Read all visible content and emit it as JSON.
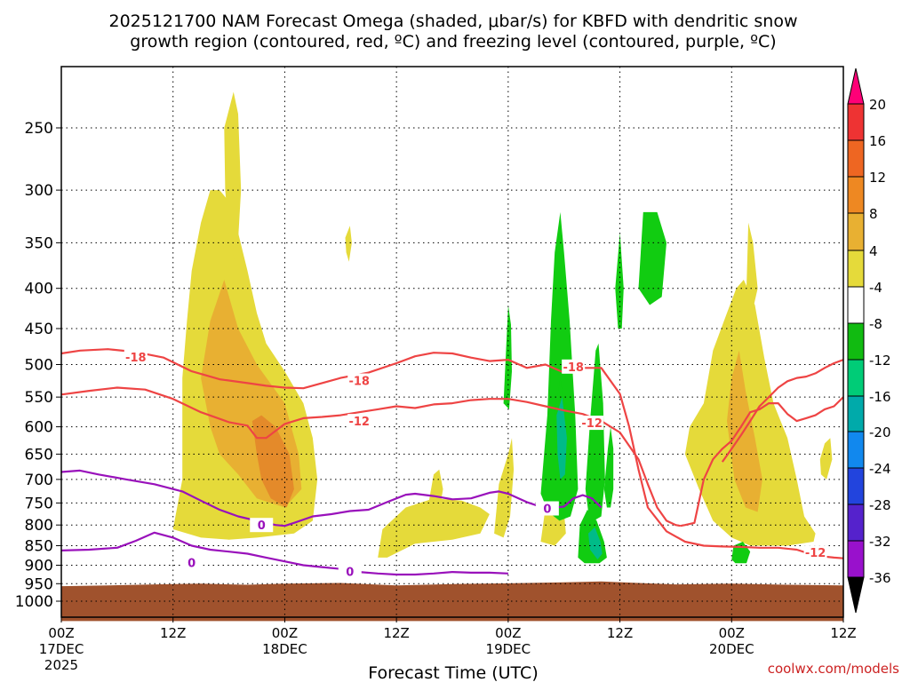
{
  "title_line1": "2025121700 NAM Forecast Omega (shaded, μbar/s) for KBFD with dendritic snow",
  "title_line2": "growth region (contoured, red, ºC) and freezing level (contoured, purple, ºC)",
  "watermark": "coolwx.com/models",
  "chart_data": {
    "type": "area",
    "title": "2025121700 NAM Forecast Omega (shaded, μbar/s) for KBFD with dendritic snow growth region (contoured, red, ºC) and freezing level (contoured, purple, ºC)",
    "xlabel": "Forecast Time (UTC)",
    "ylabel": "",
    "xlim_hours": [
      0,
      84
    ],
    "y_scale": "log-pressure",
    "ylim_hPa": [
      1040,
      200
    ],
    "x_ticks": [
      {
        "hour": 0,
        "label": "00Z",
        "date": "17DEC",
        "year": "2025"
      },
      {
        "hour": 12,
        "label": "12Z",
        "date": "",
        "year": ""
      },
      {
        "hour": 24,
        "label": "00Z",
        "date": "18DEC",
        "year": ""
      },
      {
        "hour": 36,
        "label": "12Z",
        "date": "",
        "year": ""
      },
      {
        "hour": 48,
        "label": "00Z",
        "date": "19DEC",
        "year": ""
      },
      {
        "hour": 60,
        "label": "12Z",
        "date": "",
        "year": ""
      },
      {
        "hour": 72,
        "label": "00Z",
        "date": "20DEC",
        "year": ""
      },
      {
        "hour": 84,
        "label": "12Z",
        "date": "",
        "year": ""
      }
    ],
    "y_ticks": [
      {
        "p": 250,
        "label": "250"
      },
      {
        "p": 300,
        "label": "300"
      },
      {
        "p": 350,
        "label": "350"
      },
      {
        "p": 400,
        "label": "400"
      },
      {
        "p": 450,
        "label": "450"
      },
      {
        "p": 500,
        "label": "500"
      },
      {
        "p": 550,
        "label": "550"
      },
      {
        "p": 600,
        "label": "600"
      },
      {
        "p": 650,
        "label": "650"
      },
      {
        "p": 700,
        "label": "700"
      },
      {
        "p": 750,
        "label": "750"
      },
      {
        "p": 800,
        "label": "800"
      },
      {
        "p": 850,
        "label": "850"
      },
      {
        "p": 900,
        "label": "900"
      },
      {
        "p": 950,
        "label": "950"
      },
      {
        "p": 1000,
        "label": "1000"
      }
    ],
    "colorbar": {
      "labels": [
        "20",
        "16",
        "12",
        "8",
        "4",
        "-4",
        "-8",
        "-12",
        "-16",
        "-20",
        "-24",
        "-28",
        "-32",
        "-36"
      ],
      "colors": [
        "#ff0077",
        "#ee3333",
        "#ee6622",
        "#ee8822",
        "#e8b032",
        "#e5da3a",
        "#ffffff",
        "#11bb11",
        "#00cc77",
        "#00aaaa",
        "#1188ee",
        "#2244dd",
        "#5522cc",
        "#9911cc",
        "#bbbbbb",
        "#000000"
      ]
    },
    "contour_labels": [
      {
        "text": "-18",
        "series": "dgz-18"
      },
      {
        "text": "-18",
        "series": "dgz-18"
      },
      {
        "text": "-18",
        "series": "dgz-18"
      },
      {
        "text": "-12",
        "series": "dgz-12"
      },
      {
        "text": "-12",
        "series": "dgz-12"
      },
      {
        "text": "-12",
        "series": "dgz-12"
      },
      {
        "text": "0",
        "series": "freezing"
      },
      {
        "text": "0",
        "series": "freezing"
      },
      {
        "text": "0",
        "series": "freezing"
      },
      {
        "text": "0",
        "series": "freezing"
      }
    ],
    "series": [
      {
        "name": "-18 °C isotherm",
        "color": "#ee4444",
        "x": [
          0,
          2,
          5,
          8,
          11,
          14,
          17,
          20,
          22,
          24,
          26,
          28,
          30,
          33,
          36,
          38,
          40,
          42,
          44,
          46,
          48,
          50,
          52,
          54,
          56,
          58,
          60,
          61,
          62,
          63,
          65,
          67,
          69,
          71,
          73,
          75,
          77,
          79,
          81,
          83,
          84
        ],
        "p": [
          484,
          480,
          478,
          482,
          490,
          510,
          522,
          528,
          532,
          535,
          536,
          528,
          520,
          512,
          498,
          488,
          483,
          484,
          490,
          495,
          493,
          505,
          500,
          512,
          505,
          505,
          545,
          600,
          680,
          760,
          815,
          840,
          850,
          852,
          853,
          855,
          855,
          860,
          875,
          880,
          882
        ]
      },
      {
        "name": "-18 °C isotherm (upper, late)",
        "color": "#ee4444",
        "x": [
          71,
          72,
          73,
          74,
          75,
          76,
          77,
          78,
          79,
          80,
          81,
          82,
          83,
          84
        ],
        "p": [
          665,
          640,
          615,
          590,
          565,
          550,
          535,
          525,
          520,
          518,
          513,
          505,
          498,
          493
        ]
      },
      {
        "name": "-12 °C isotherm",
        "color": "#ee4444",
        "x": [
          0,
          3,
          6,
          9,
          12,
          15,
          18,
          20,
          21,
          22,
          24,
          26,
          28,
          30,
          32,
          34,
          36,
          38,
          40,
          42,
          44,
          46,
          48,
          50,
          52,
          54,
          56,
          58,
          60,
          62,
          63,
          64,
          65,
          66,
          66.5
        ],
        "p": [
          546,
          540,
          535,
          538,
          553,
          575,
          592,
          598,
          620,
          620,
          595,
          585,
          583,
          580,
          575,
          570,
          565,
          568,
          562,
          560,
          555,
          553,
          553,
          558,
          565,
          572,
          578,
          590,
          610,
          660,
          710,
          760,
          790,
          800,
          802
        ]
      },
      {
        "name": "-12 °C isotherm (late)",
        "color": "#ee4444",
        "x": [
          66.5,
          67,
          68,
          69,
          70,
          71,
          72,
          73,
          74,
          75,
          76,
          77,
          78,
          79,
          80,
          81,
          82,
          83,
          84
        ],
        "p": [
          802,
          800,
          795,
          700,
          660,
          640,
          625,
          600,
          575,
          570,
          560,
          560,
          578,
          590,
          585,
          580,
          570,
          565,
          550
        ]
      },
      {
        "name": "Freezing level (0 °C)",
        "color": "#9911bb",
        "x": [
          0,
          2,
          4,
          7,
          10,
          13,
          15,
          17,
          19,
          21,
          23,
          24,
          25,
          27,
          29,
          31,
          33,
          35,
          37,
          38,
          40,
          42,
          44,
          46,
          47,
          48,
          50,
          52,
          54,
          55,
          56,
          57,
          58
        ],
        "p": [
          685,
          682,
          690,
          700,
          710,
          725,
          745,
          765,
          780,
          790,
          800,
          802,
          795,
          780,
          775,
          768,
          765,
          748,
          732,
          730,
          735,
          742,
          740,
          728,
          725,
          730,
          748,
          762,
          758,
          740,
          733,
          740,
          760
        ]
      },
      {
        "name": "Freezing level (lower)",
        "color": "#9911bb",
        "x": [
          0,
          3,
          6,
          8,
          10,
          12,
          14,
          16,
          18,
          20,
          22,
          24,
          26,
          28,
          30,
          32,
          34,
          36,
          38,
          40,
          42,
          44,
          46,
          48
        ],
        "p": [
          862,
          860,
          855,
          838,
          818,
          830,
          850,
          860,
          865,
          870,
          880,
          890,
          900,
          905,
          910,
          918,
          922,
          925,
          925,
          922,
          918,
          920,
          920,
          922
        ]
      }
    ]
  }
}
